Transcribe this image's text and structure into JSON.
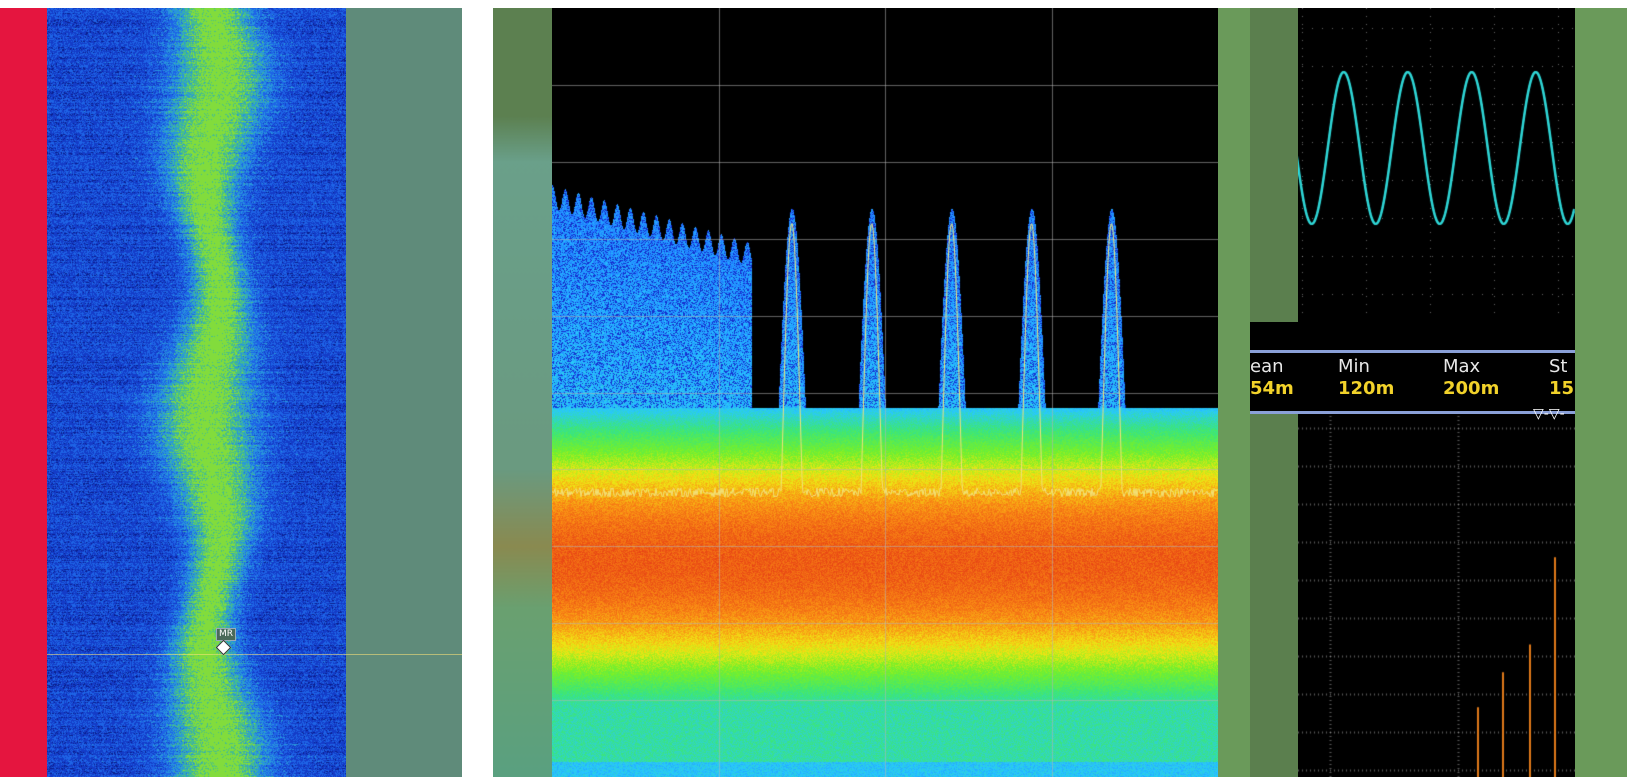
{
  "spectrogram": {
    "marker_label": "MR"
  },
  "dpx_spectrum": {
    "grid_divisions_x": 4,
    "grid_divisions_y": 10
  },
  "oscilloscope": {
    "measurements": {
      "columns": [
        {
          "header": "ean",
          "value": "54m"
        },
        {
          "header": "Min",
          "value": "120m"
        },
        {
          "header": "Max",
          "value": "200m"
        },
        {
          "header": "St",
          "value": "15"
        }
      ]
    },
    "trigger_glyph": "▽‐▽‐"
  },
  "colors": {
    "accent_red": "#e5153f",
    "trace_cyan": "#2fd6d6",
    "trace_yellow": "#f2e27a",
    "histogram_orange": "#e07a1a",
    "measure_value": "#f2d22a"
  }
}
